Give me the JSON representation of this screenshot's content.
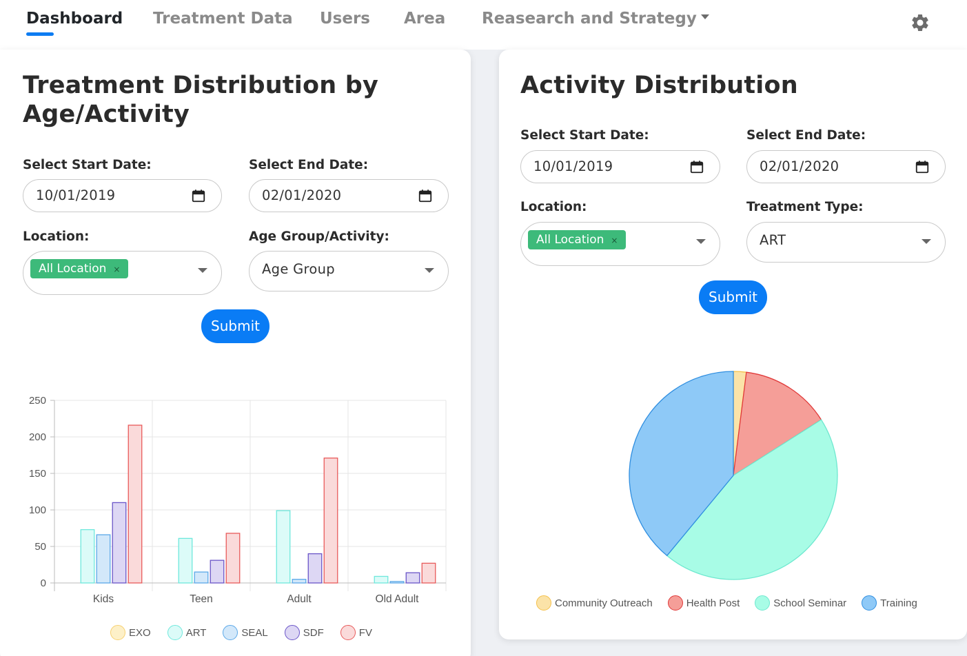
{
  "nav": {
    "items": [
      "Dashboard",
      "Treatment Data",
      "Users",
      "Area",
      "Reasearch and Strategy"
    ],
    "active_index": 0
  },
  "icons": {
    "settings": "gear-icon",
    "calendar": "calendar-icon",
    "dropdown": "chevron-down-icon",
    "remove": "close-icon"
  },
  "left": {
    "title_line1": "Treatment Distribution by",
    "title_line2": "Age/Activity",
    "start_label": "Select Start Date:",
    "start_value": "10/01/2019",
    "end_label": "Select End Date:",
    "end_value": "02/01/2020",
    "location_label": "Location:",
    "location_chip": "All Location",
    "chip_remove": "×",
    "age_label": "Age Group/Activity:",
    "age_value": "Age Group",
    "submit": "Submit"
  },
  "right": {
    "title": "Activity Distribution",
    "start_label": "Select Start Date:",
    "start_value": "10/01/2019",
    "end_label": "Select End Date:",
    "end_value": "02/01/2020",
    "location_label": "Location:",
    "location_chip": "All Location",
    "chip_remove": "×",
    "type_label": "Treatment Type:",
    "type_value": "ART",
    "submit": "Submit"
  },
  "chart_data": [
    {
      "type": "bar",
      "title": "",
      "xlabel": "",
      "ylabel": "",
      "categories": [
        "Kids",
        "Teen",
        "Adult",
        "Old Adult"
      ],
      "ylim": [
        0,
        250
      ],
      "yticks": [
        0,
        50,
        100,
        150,
        200,
        250
      ],
      "grid": true,
      "legend_position": "bottom",
      "series": [
        {
          "name": "EXO",
          "values": [
            0,
            0,
            0,
            0
          ],
          "color": "#f7d070",
          "fill": "#fdf0c8"
        },
        {
          "name": "ART",
          "values": [
            73,
            61,
            99,
            9
          ],
          "color": "#6ee8dc",
          "fill": "#dcfbf8"
        },
        {
          "name": "SEAL",
          "values": [
            66,
            15,
            5,
            2
          ],
          "color": "#5aa8e8",
          "fill": "#d3e8fa"
        },
        {
          "name": "SDF",
          "values": [
            110,
            31,
            40,
            14
          ],
          "color": "#6a55c8",
          "fill": "#ddd7f4"
        },
        {
          "name": "FV",
          "values": [
            216,
            68,
            171,
            27
          ],
          "color": "#e85a5a",
          "fill": "#fadada"
        }
      ]
    },
    {
      "type": "pie",
      "title": "",
      "legend_position": "bottom",
      "labels": [
        "Community Outreach",
        "Health Post",
        "School Seminar",
        "Training"
      ],
      "values": [
        2,
        14,
        45,
        39
      ],
      "colors": [
        "#fbe3a8",
        "#f59e98",
        "#a8fce6",
        "#8ec9f7"
      ],
      "borders": [
        "#f5c04a",
        "#e03838",
        "#6ee8cf",
        "#2f8ee0"
      ]
    }
  ]
}
